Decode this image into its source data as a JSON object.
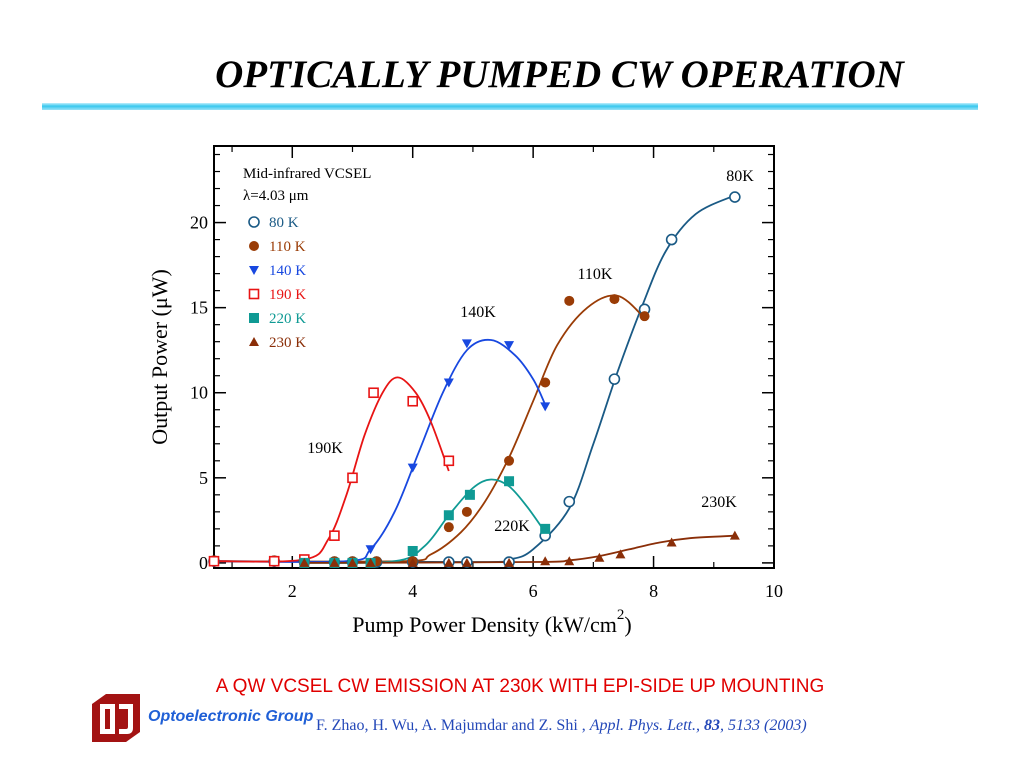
{
  "slide": {
    "title": "OPTICALLY PUMPED CW OPERATION",
    "caption": "A QW VCSEL CW  EMISSION AT 230K WITH EPI-SIDE UP MOUNTING",
    "group": "Optoelectronic Group",
    "citation": {
      "authors": "F. Zhao, H. Wu, A. Majumdar and Z. Shi ,",
      "journal": "Appl. Phys. Lett.,",
      "volume": "83",
      "pages": ", 5133 (2003)"
    }
  },
  "chart_data": {
    "type": "scatter",
    "title": "",
    "xlabel": "Pump Power Density (kW/cm",
    "xlabel_sup": "2",
    "xlabel_end": ")",
    "ylabel": "Output Power (μW)",
    "xlim": [
      0.7,
      10
    ],
    "ylim": [
      -0.3,
      24.5
    ],
    "xticks": [
      2,
      4,
      6,
      8,
      10
    ],
    "yticks": [
      0,
      5,
      10,
      15,
      20
    ],
    "grid": false,
    "legend_position": "top-left",
    "annotations": {
      "device": "Mid-infrared VCSEL",
      "wavelength": "λ=4.03 μm"
    },
    "series": [
      {
        "name": "80 K",
        "curve_label": "80K",
        "color": "#1a5a85",
        "marker": "circle-open",
        "x": [
          0.7,
          1.7,
          2.2,
          2.7,
          3.0,
          3.4,
          4.0,
          4.6,
          4.9,
          5.6,
          6.2,
          6.6,
          7.35,
          7.85,
          8.3,
          9.35
        ],
        "y": [
          0.1,
          0.1,
          0.1,
          0.05,
          0.05,
          0.05,
          0.05,
          0.05,
          0.05,
          0.05,
          1.6,
          3.6,
          10.8,
          14.9,
          19.0,
          21.5
        ],
        "fit": [
          [
            0.7,
            0.1
          ],
          [
            5.0,
            0.05
          ],
          [
            5.6,
            0.2
          ],
          [
            6.0,
            0.8
          ],
          [
            6.6,
            3.2
          ],
          [
            7.0,
            7.0
          ],
          [
            7.4,
            11.2
          ],
          [
            7.8,
            15.0
          ],
          [
            8.2,
            18.3
          ],
          [
            8.7,
            20.5
          ],
          [
            9.35,
            21.6
          ]
        ]
      },
      {
        "name": "110 K",
        "curve_label": "110K",
        "color": "#9a3c06",
        "marker": "circle-filled",
        "x": [
          0.7,
          1.7,
          2.2,
          2.7,
          3.0,
          3.4,
          4.0,
          4.6,
          4.9,
          5.6,
          6.2,
          6.6,
          7.35,
          7.85
        ],
        "y": [
          0.15,
          0.15,
          0.1,
          0.1,
          0.1,
          0.1,
          0.1,
          2.1,
          3.0,
          6.0,
          10.6,
          15.4,
          15.5,
          14.5
        ],
        "fit": [
          [
            0.7,
            0.1
          ],
          [
            3.8,
            0.1
          ],
          [
            4.3,
            0.5
          ],
          [
            4.8,
            1.8
          ],
          [
            5.2,
            3.6
          ],
          [
            5.6,
            6.2
          ],
          [
            6.0,
            9.5
          ],
          [
            6.4,
            12.8
          ],
          [
            6.9,
            15.0
          ],
          [
            7.4,
            15.7
          ],
          [
            7.85,
            14.4
          ]
        ]
      },
      {
        "name": "140 K",
        "curve_label": "140K",
        "color": "#1848e0",
        "marker": "triangle-down-filled",
        "x": [
          0.7,
          2.7,
          3.0,
          3.3,
          4.0,
          4.6,
          4.9,
          5.6,
          6.2
        ],
        "y": [
          0.1,
          0.0,
          0.0,
          0.8,
          5.6,
          10.6,
          12.9,
          12.8,
          9.2
        ],
        "fit": [
          [
            0.7,
            0.1
          ],
          [
            2.9,
            0.1
          ],
          [
            3.3,
            0.8
          ],
          [
            3.7,
            3.0
          ],
          [
            4.1,
            6.5
          ],
          [
            4.5,
            10.0
          ],
          [
            4.9,
            12.5
          ],
          [
            5.3,
            13.1
          ],
          [
            5.7,
            12.2
          ],
          [
            6.0,
            10.8
          ],
          [
            6.2,
            9.3
          ]
        ]
      },
      {
        "name": "190 K",
        "curve_label": "190K",
        "color": "#e81414",
        "marker": "square-open",
        "x": [
          0.7,
          1.7,
          2.2,
          2.7,
          3.0,
          3.35,
          4.0,
          4.6
        ],
        "y": [
          0.1,
          0.1,
          0.2,
          1.6,
          5.0,
          10.0,
          9.5,
          6.0
        ],
        "fit": [
          [
            0.7,
            0.1
          ],
          [
            2.2,
            0.2
          ],
          [
            2.6,
            1.4
          ],
          [
            2.9,
            4.0
          ],
          [
            3.2,
            7.5
          ],
          [
            3.5,
            10.0
          ],
          [
            3.75,
            10.9
          ],
          [
            4.05,
            10.0
          ],
          [
            4.3,
            8.3
          ],
          [
            4.6,
            5.4
          ]
        ]
      },
      {
        "name": "220 K",
        "curve_label": "220K",
        "color": "#0f9a94",
        "marker": "square-filled",
        "x": [
          2.2,
          2.7,
          3.0,
          3.3,
          4.0,
          4.6,
          4.95,
          5.6,
          6.2
        ],
        "y": [
          0.0,
          0.0,
          0.0,
          0.0,
          0.7,
          2.8,
          4.0,
          4.8,
          2.0
        ],
        "fit": [
          [
            2.2,
            0.0
          ],
          [
            3.7,
            0.1
          ],
          [
            4.2,
            1.0
          ],
          [
            4.6,
            2.8
          ],
          [
            5.0,
            4.4
          ],
          [
            5.3,
            4.9
          ],
          [
            5.6,
            4.5
          ],
          [
            5.9,
            3.3
          ],
          [
            6.2,
            1.8
          ]
        ]
      },
      {
        "name": "230 K",
        "curve_label": "230K",
        "color": "#8a2e08",
        "marker": "triangle-up-filled",
        "x": [
          2.2,
          2.7,
          3.0,
          3.3,
          4.0,
          4.6,
          4.9,
          5.6,
          6.2,
          6.6,
          7.1,
          7.45,
          8.3,
          9.35
        ],
        "y": [
          0.0,
          0.0,
          0.0,
          0.0,
          0.0,
          0.0,
          0.0,
          0.0,
          0.1,
          0.1,
          0.3,
          0.5,
          1.2,
          1.6
        ],
        "fit": [
          [
            2.2,
            0.0
          ],
          [
            6.0,
            0.05
          ],
          [
            6.6,
            0.15
          ],
          [
            7.1,
            0.4
          ],
          [
            7.6,
            0.8
          ],
          [
            8.1,
            1.2
          ],
          [
            8.6,
            1.45
          ],
          [
            9.35,
            1.6
          ]
        ]
      }
    ]
  }
}
